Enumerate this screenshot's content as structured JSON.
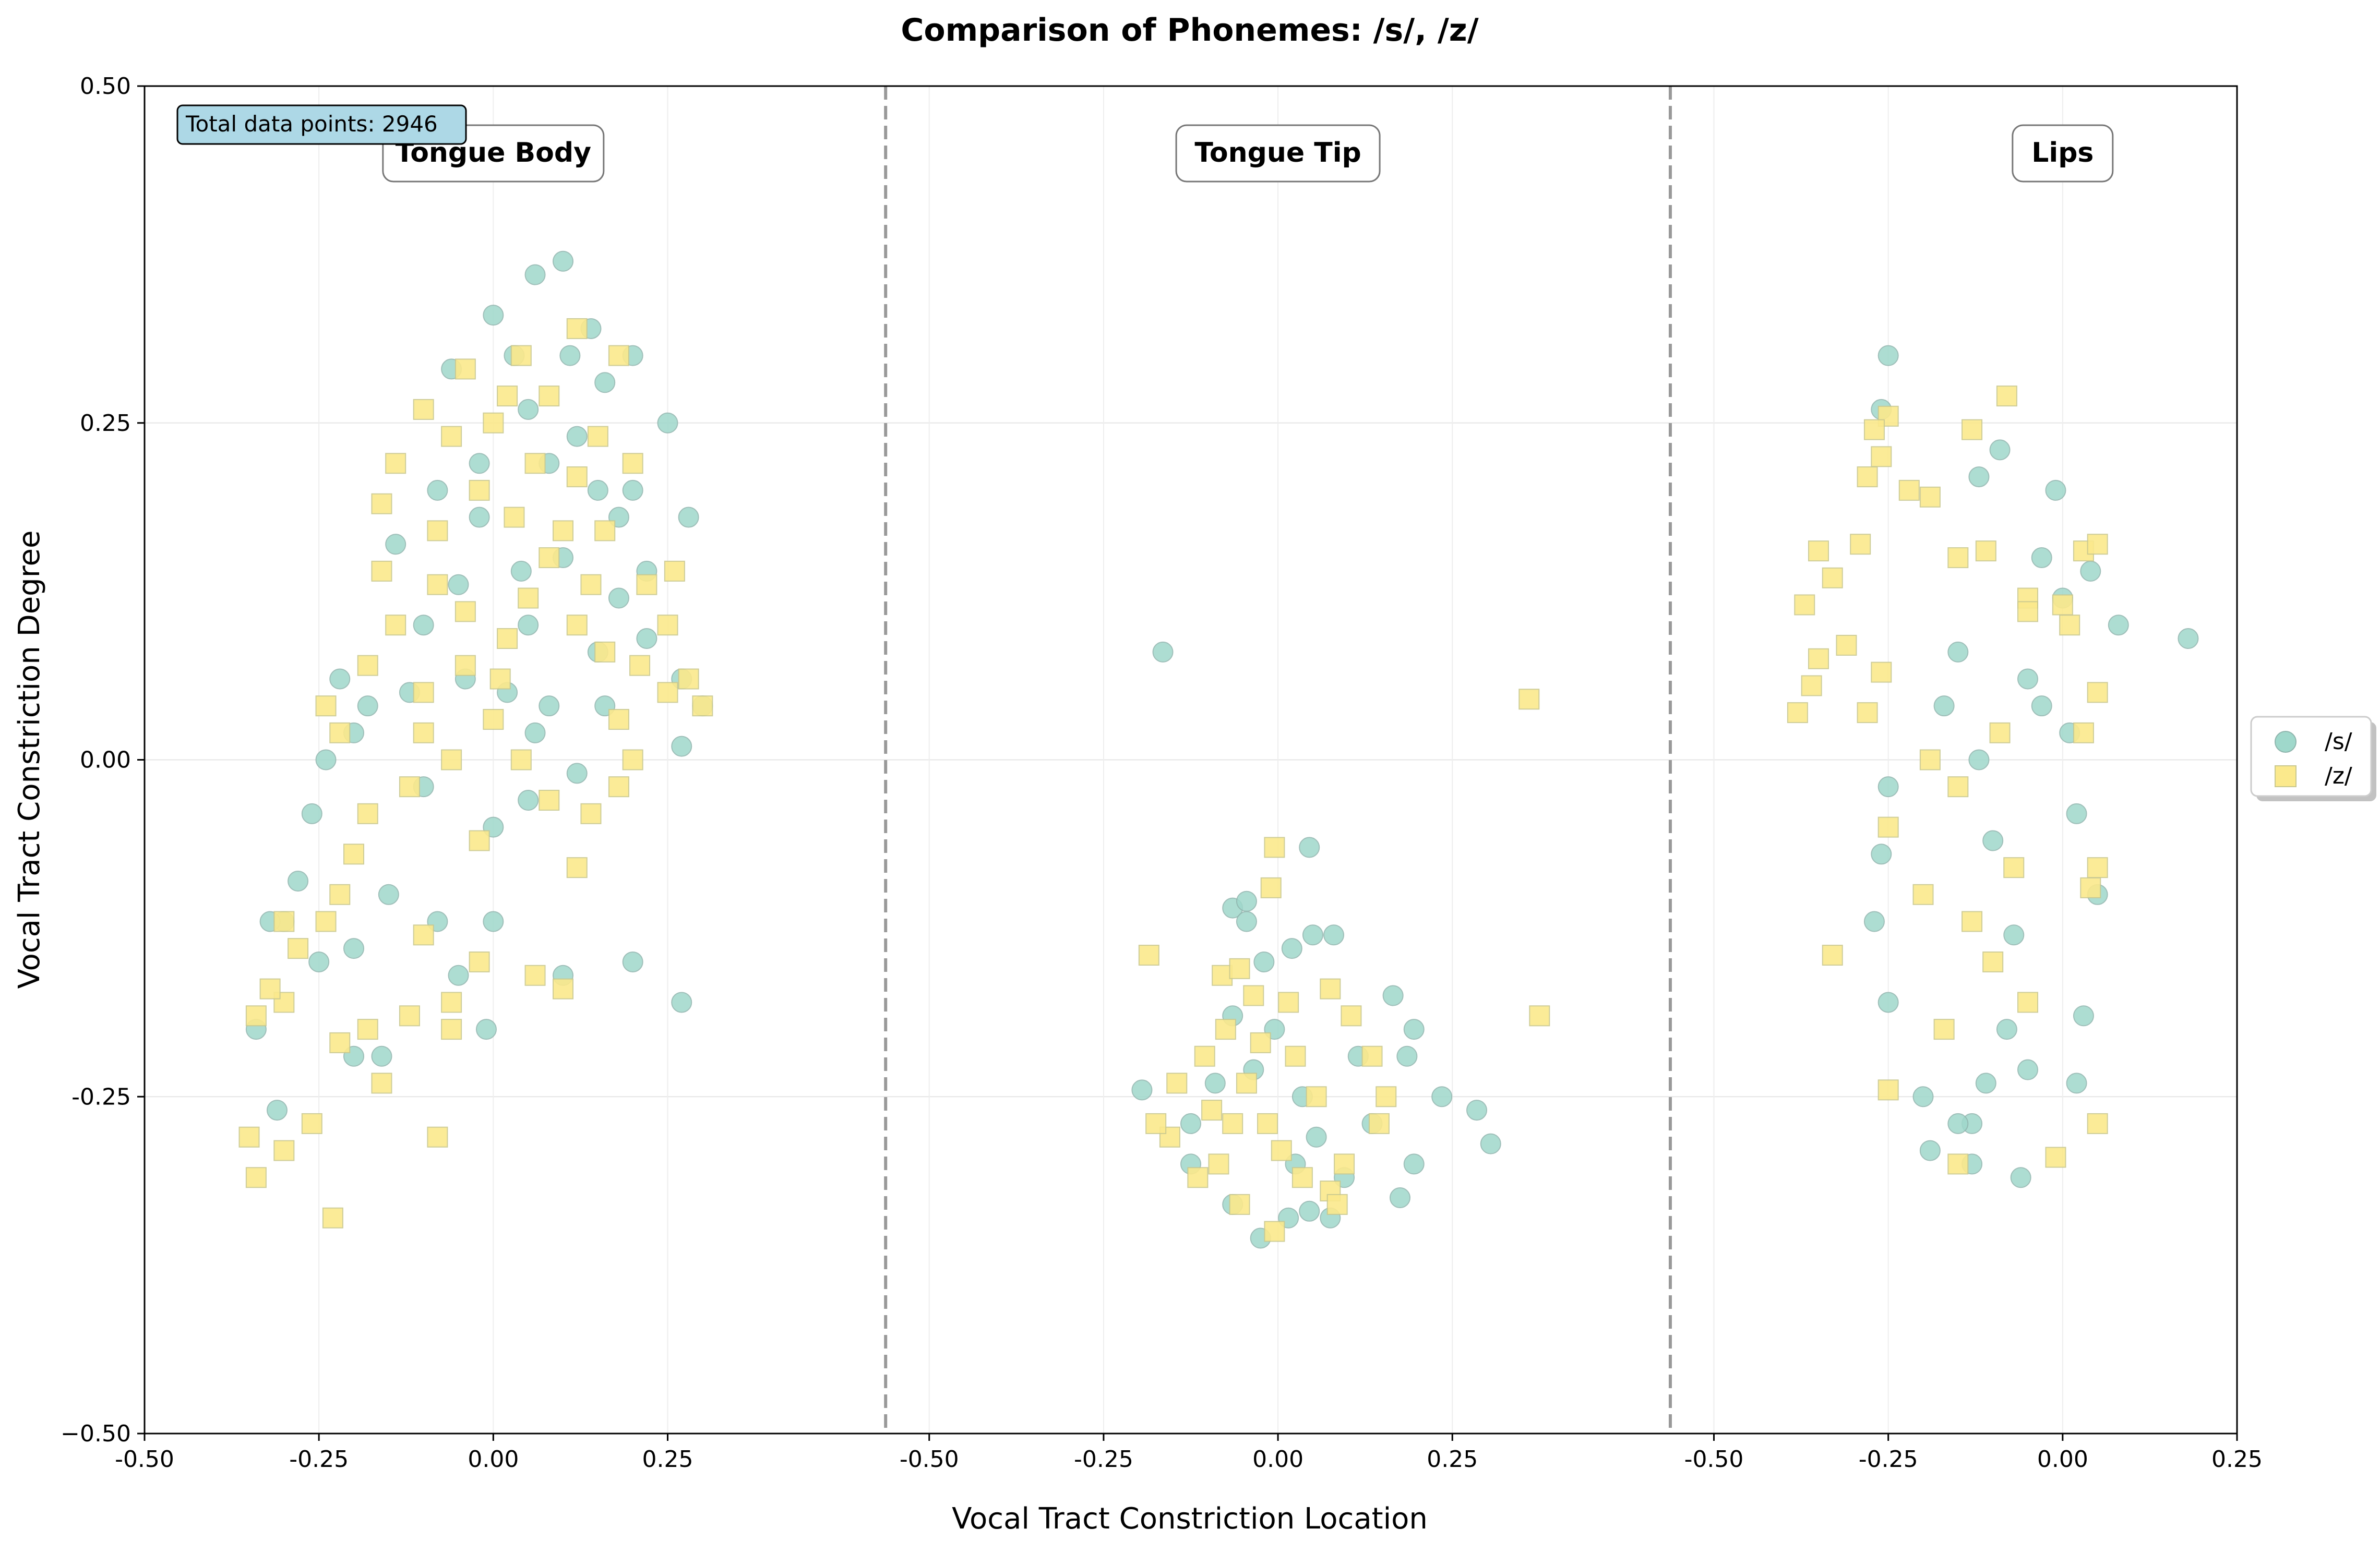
{
  "chart_data": {
    "type": "scatter",
    "title": "Comparison of Phonemes: /s/, /z/",
    "xlabel": "Vocal Tract Constriction Location",
    "ylabel": "Vocal Tract Constriction Degree",
    "ylim": [
      -0.5,
      0.5
    ],
    "xlim": [
      -0.5,
      2.5
    ],
    "panel_offsets": [
      0,
      1.125,
      2.25
    ],
    "grid": true,
    "legend_position": "right",
    "annotation": "Total data points: 2946",
    "regions": [
      {
        "name": "Tongue Body",
        "offset": 0
      },
      {
        "name": "Tongue Tip",
        "offset": 1.125
      },
      {
        "name": "Lips",
        "offset": 2.25
      }
    ],
    "x_ticks": [
      {
        "value": -0.5,
        "label": "-0.50"
      },
      {
        "value": -0.25,
        "label": "-0.25"
      },
      {
        "value": 0.0,
        "label": "0.00"
      },
      {
        "value": 0.25,
        "label": "0.25"
      },
      {
        "value": 0.625,
        "label": "-0.50"
      },
      {
        "value": 0.875,
        "label": "-0.25"
      },
      {
        "value": 1.125,
        "label": "0.00"
      },
      {
        "value": 1.375,
        "label": "0.25"
      },
      {
        "value": 1.75,
        "label": "-0.50"
      },
      {
        "value": 2.0,
        "label": "-0.25"
      },
      {
        "value": 2.25,
        "label": "0.00"
      },
      {
        "value": 2.5,
        "label": "0.25"
      }
    ],
    "y_ticks": [
      {
        "value": 0.5,
        "label": "0.50"
      },
      {
        "value": 0.25,
        "label": "0.25"
      },
      {
        "value": 0.0,
        "label": "0.00"
      },
      {
        "value": -0.25,
        "label": "-0.25"
      },
      {
        "value": -0.5,
        "label": "−0.50"
      }
    ],
    "series": [
      {
        "name": "/s/",
        "color": "#9fd8cb",
        "edge": "#8fb5ad",
        "marker": "circle",
        "points": [
          [
            0.0,
            0.33
          ],
          [
            0.06,
            0.36
          ],
          [
            0.1,
            0.37
          ],
          [
            0.14,
            0.32
          ],
          [
            0.03,
            0.3
          ],
          [
            -0.06,
            0.29
          ],
          [
            0.11,
            0.3
          ],
          [
            0.05,
            0.26
          ],
          [
            0.16,
            0.28
          ],
          [
            0.2,
            0.3
          ],
          [
            0.08,
            0.22
          ],
          [
            -0.02,
            0.22
          ],
          [
            0.15,
            0.2
          ],
          [
            0.2,
            0.2
          ],
          [
            0.25,
            0.25
          ],
          [
            0.1,
            0.15
          ],
          [
            0.18,
            0.12
          ],
          [
            0.22,
            0.09
          ],
          [
            0.27,
            0.06
          ],
          [
            0.28,
            0.18
          ],
          [
            0.3,
            0.04
          ],
          [
            0.27,
            0.01
          ],
          [
            0.05,
            0.1
          ],
          [
            -0.05,
            0.13
          ],
          [
            -0.12,
            0.05
          ],
          [
            -0.18,
            0.04
          ],
          [
            -0.2,
            0.02
          ],
          [
            -0.22,
            0.06
          ],
          [
            -0.24,
            0.0
          ],
          [
            -0.1,
            -0.02
          ],
          [
            0.0,
            -0.05
          ],
          [
            0.05,
            -0.03
          ],
          [
            0.12,
            -0.01
          ],
          [
            0.15,
            0.08
          ],
          [
            -0.26,
            -0.04
          ],
          [
            -0.28,
            -0.09
          ],
          [
            -0.3,
            -0.12
          ],
          [
            -0.32,
            -0.12
          ],
          [
            -0.25,
            -0.15
          ],
          [
            -0.2,
            -0.14
          ],
          [
            -0.15,
            -0.1
          ],
          [
            -0.08,
            -0.12
          ],
          [
            0.0,
            -0.12
          ],
          [
            0.1,
            -0.16
          ],
          [
            0.2,
            -0.15
          ],
          [
            0.27,
            -0.18
          ],
          [
            -0.34,
            -0.2
          ],
          [
            -0.31,
            -0.26
          ],
          [
            -0.2,
            -0.22
          ],
          [
            -0.16,
            -0.22
          ],
          [
            -0.01,
            -0.2
          ],
          [
            -0.05,
            -0.16
          ],
          [
            0.02,
            0.05
          ],
          [
            0.08,
            0.04
          ],
          [
            -0.02,
            0.18
          ],
          [
            0.12,
            0.24
          ],
          [
            -0.08,
            0.2
          ],
          [
            0.04,
            0.14
          ],
          [
            -0.14,
            0.16
          ],
          [
            0.18,
            0.18
          ],
          [
            0.06,
            0.02
          ],
          [
            -0.04,
            0.06
          ],
          [
            0.22,
            0.14
          ],
          [
            0.16,
            0.04
          ],
          [
            -0.1,
            0.1
          ],
          [
            1.105,
            -0.15
          ],
          [
            1.145,
            -0.14
          ],
          [
            1.175,
            -0.13
          ],
          [
            1.205,
            -0.13
          ],
          [
            1.06,
            -0.11
          ],
          [
            1.08,
            -0.12
          ],
          [
            1.17,
            -0.065
          ],
          [
            1.08,
            -0.105
          ],
          [
            0.96,
            0.08
          ],
          [
            0.93,
            -0.245
          ],
          [
            1.29,
            -0.175
          ],
          [
            1.32,
            -0.2
          ],
          [
            1.31,
            -0.22
          ],
          [
            1.36,
            -0.25
          ],
          [
            1.41,
            -0.26
          ],
          [
            1.43,
            -0.285
          ],
          [
            1.32,
            -0.3
          ],
          [
            1.3,
            -0.325
          ],
          [
            1.17,
            -0.335
          ],
          [
            1.1,
            -0.355
          ],
          [
            1.2,
            -0.34
          ],
          [
            1.14,
            -0.34
          ],
          [
            1.06,
            -0.33
          ],
          [
            1.0,
            -0.3
          ],
          [
            1.0,
            -0.27
          ],
          [
            1.18,
            -0.28
          ],
          [
            1.24,
            -0.22
          ],
          [
            1.12,
            -0.2
          ],
          [
            1.16,
            -0.25
          ],
          [
            1.09,
            -0.23
          ],
          [
            1.035,
            -0.24
          ],
          [
            1.26,
            -0.27
          ],
          [
            1.15,
            -0.3
          ],
          [
            1.22,
            -0.31
          ],
          [
            1.06,
            -0.19
          ],
          [
            2.0,
            0.3
          ],
          [
            1.99,
            0.26
          ],
          [
            2.16,
            0.23
          ],
          [
            2.13,
            0.21
          ],
          [
            2.24,
            0.2
          ],
          [
            2.22,
            0.15
          ],
          [
            2.29,
            0.14
          ],
          [
            2.25,
            0.12
          ],
          [
            2.33,
            0.1
          ],
          [
            2.43,
            0.09
          ],
          [
            2.22,
            0.04
          ],
          [
            2.26,
            0.02
          ],
          [
            2.27,
            -0.04
          ],
          [
            2.3,
            -0.1
          ],
          [
            2.28,
            -0.19
          ],
          [
            2.27,
            -0.24
          ],
          [
            2.2,
            -0.23
          ],
          [
            2.14,
            -0.24
          ],
          [
            2.12,
            -0.27
          ],
          [
            2.1,
            -0.27
          ],
          [
            2.19,
            -0.31
          ],
          [
            2.06,
            -0.29
          ],
          [
            2.12,
            -0.3
          ],
          [
            2.05,
            -0.25
          ],
          [
            2.0,
            -0.18
          ],
          [
            1.98,
            -0.12
          ],
          [
            1.99,
            -0.07
          ],
          [
            2.0,
            -0.02
          ],
          [
            2.08,
            0.04
          ],
          [
            2.1,
            0.08
          ],
          [
            2.13,
            0.0
          ],
          [
            2.15,
            -0.06
          ],
          [
            2.18,
            -0.13
          ],
          [
            2.2,
            0.06
          ],
          [
            2.17,
            -0.2
          ]
        ]
      },
      {
        "name": "/z/",
        "color": "#fbe98c",
        "edge": "#c9c88f",
        "marker": "square",
        "points": [
          [
            0.04,
            0.3
          ],
          [
            0.12,
            0.32
          ],
          [
            0.18,
            0.3
          ],
          [
            -0.04,
            0.29
          ],
          [
            0.02,
            0.27
          ],
          [
            0.08,
            0.27
          ],
          [
            -0.1,
            0.26
          ],
          [
            0.15,
            0.24
          ],
          [
            -0.06,
            0.24
          ],
          [
            0.0,
            0.25
          ],
          [
            0.06,
            0.22
          ],
          [
            0.12,
            0.21
          ],
          [
            0.2,
            0.22
          ],
          [
            -0.14,
            0.22
          ],
          [
            -0.02,
            0.2
          ],
          [
            0.03,
            0.18
          ],
          [
            0.1,
            0.17
          ],
          [
            0.16,
            0.17
          ],
          [
            -0.08,
            0.17
          ],
          [
            -0.16,
            0.19
          ],
          [
            0.22,
            0.13
          ],
          [
            0.26,
            0.14
          ],
          [
            0.25,
            0.1
          ],
          [
            0.21,
            0.07
          ],
          [
            0.25,
            0.05
          ],
          [
            0.28,
            0.06
          ],
          [
            0.3,
            0.04
          ],
          [
            0.18,
            0.03
          ],
          [
            0.2,
            0.0
          ],
          [
            0.18,
            -0.02
          ],
          [
            0.14,
            -0.04
          ],
          [
            0.12,
            -0.08
          ],
          [
            0.1,
            -0.17
          ],
          [
            0.06,
            -0.16
          ],
          [
            -0.02,
            -0.15
          ],
          [
            -0.06,
            -0.18
          ],
          [
            -0.1,
            -0.13
          ],
          [
            -0.06,
            -0.2
          ],
          [
            -0.12,
            -0.19
          ],
          [
            -0.18,
            -0.2
          ],
          [
            -0.16,
            -0.24
          ],
          [
            -0.08,
            -0.28
          ],
          [
            -0.22,
            -0.21
          ],
          [
            -0.26,
            -0.27
          ],
          [
            -0.3,
            -0.29
          ],
          [
            -0.35,
            -0.28
          ],
          [
            -0.34,
            -0.31
          ],
          [
            -0.23,
            -0.34
          ],
          [
            -0.3,
            -0.18
          ],
          [
            -0.34,
            -0.19
          ],
          [
            -0.32,
            -0.17
          ],
          [
            -0.28,
            -0.14
          ],
          [
            -0.24,
            -0.12
          ],
          [
            -0.3,
            -0.12
          ],
          [
            -0.22,
            -0.1
          ],
          [
            -0.2,
            -0.07
          ],
          [
            -0.18,
            -0.04
          ],
          [
            -0.22,
            0.02
          ],
          [
            -0.24,
            0.04
          ],
          [
            -0.18,
            0.07
          ],
          [
            -0.14,
            0.1
          ],
          [
            -0.1,
            0.05
          ],
          [
            -0.04,
            0.07
          ],
          [
            0.0,
            0.03
          ],
          [
            0.04,
            0.0
          ],
          [
            0.08,
            -0.03
          ],
          [
            -0.06,
            0.0
          ],
          [
            -0.12,
            -0.02
          ],
          [
            -0.02,
            -0.06
          ],
          [
            0.05,
            0.12
          ],
          [
            0.12,
            0.1
          ],
          [
            0.16,
            0.08
          ],
          [
            0.02,
            0.09
          ],
          [
            -0.08,
            0.13
          ],
          [
            -0.16,
            0.14
          ],
          [
            0.08,
            0.15
          ],
          [
            0.14,
            0.13
          ],
          [
            -0.04,
            0.11
          ],
          [
            0.01,
            0.06
          ],
          [
            -0.1,
            0.02
          ],
          [
            1.12,
            -0.065
          ],
          [
            1.115,
            -0.095
          ],
          [
            0.94,
            -0.145
          ],
          [
            1.045,
            -0.16
          ],
          [
            1.07,
            -0.155
          ],
          [
            1.09,
            -0.175
          ],
          [
            1.14,
            -0.18
          ],
          [
            1.2,
            -0.17
          ],
          [
            1.23,
            -0.19
          ],
          [
            1.26,
            -0.22
          ],
          [
            1.28,
            -0.25
          ],
          [
            1.27,
            -0.27
          ],
          [
            1.22,
            -0.3
          ],
          [
            1.2,
            -0.32
          ],
          [
            1.12,
            -0.35
          ],
          [
            1.07,
            -0.33
          ],
          [
            1.01,
            -0.31
          ],
          [
            0.97,
            -0.28
          ],
          [
            0.95,
            -0.27
          ],
          [
            0.98,
            -0.24
          ],
          [
            1.02,
            -0.22
          ],
          [
            1.05,
            -0.2
          ],
          [
            1.08,
            -0.24
          ],
          [
            1.11,
            -0.27
          ],
          [
            1.15,
            -0.22
          ],
          [
            1.18,
            -0.25
          ],
          [
            1.13,
            -0.29
          ],
          [
            1.06,
            -0.27
          ],
          [
            1.04,
            -0.3
          ],
          [
            1.1,
            -0.21
          ],
          [
            1.485,
            0.045
          ],
          [
            1.5,
            -0.19
          ],
          [
            1.21,
            -0.33
          ],
          [
            1.16,
            -0.31
          ],
          [
            1.03,
            -0.26
          ],
          [
            2.17,
            0.27
          ],
          [
            2.12,
            0.245
          ],
          [
            2.0,
            0.255
          ],
          [
            1.98,
            0.245
          ],
          [
            1.99,
            0.225
          ],
          [
            1.97,
            0.21
          ],
          [
            2.03,
            0.2
          ],
          [
            2.06,
            0.195
          ],
          [
            2.1,
            0.15
          ],
          [
            2.14,
            0.155
          ],
          [
            1.9,
            0.155
          ],
          [
            1.92,
            0.135
          ],
          [
            1.96,
            0.16
          ],
          [
            2.28,
            0.155
          ],
          [
            2.3,
            0.16
          ],
          [
            2.2,
            0.12
          ],
          [
            2.25,
            0.115
          ],
          [
            2.26,
            0.1
          ],
          [
            2.2,
            0.11
          ],
          [
            1.88,
            0.115
          ],
          [
            1.9,
            0.075
          ],
          [
            1.94,
            0.085
          ],
          [
            1.99,
            0.065
          ],
          [
            1.97,
            0.035
          ],
          [
            1.87,
            0.035
          ],
          [
            1.89,
            0.055
          ],
          [
            2.3,
            0.05
          ],
          [
            2.28,
            0.02
          ],
          [
            2.3,
            -0.08
          ],
          [
            2.29,
            -0.095
          ],
          [
            2.3,
            -0.27
          ],
          [
            2.24,
            -0.295
          ],
          [
            2.1,
            -0.3
          ],
          [
            2.0,
            -0.245
          ],
          [
            1.92,
            -0.145
          ],
          [
            2.0,
            -0.05
          ],
          [
            2.05,
            -0.1
          ],
          [
            2.1,
            -0.02
          ],
          [
            2.15,
            -0.15
          ],
          [
            2.18,
            -0.08
          ],
          [
            2.2,
            -0.18
          ],
          [
            2.08,
            -0.2
          ],
          [
            2.12,
            -0.12
          ],
          [
            2.16,
            0.02
          ],
          [
            2.06,
            0.0
          ]
        ]
      }
    ]
  }
}
